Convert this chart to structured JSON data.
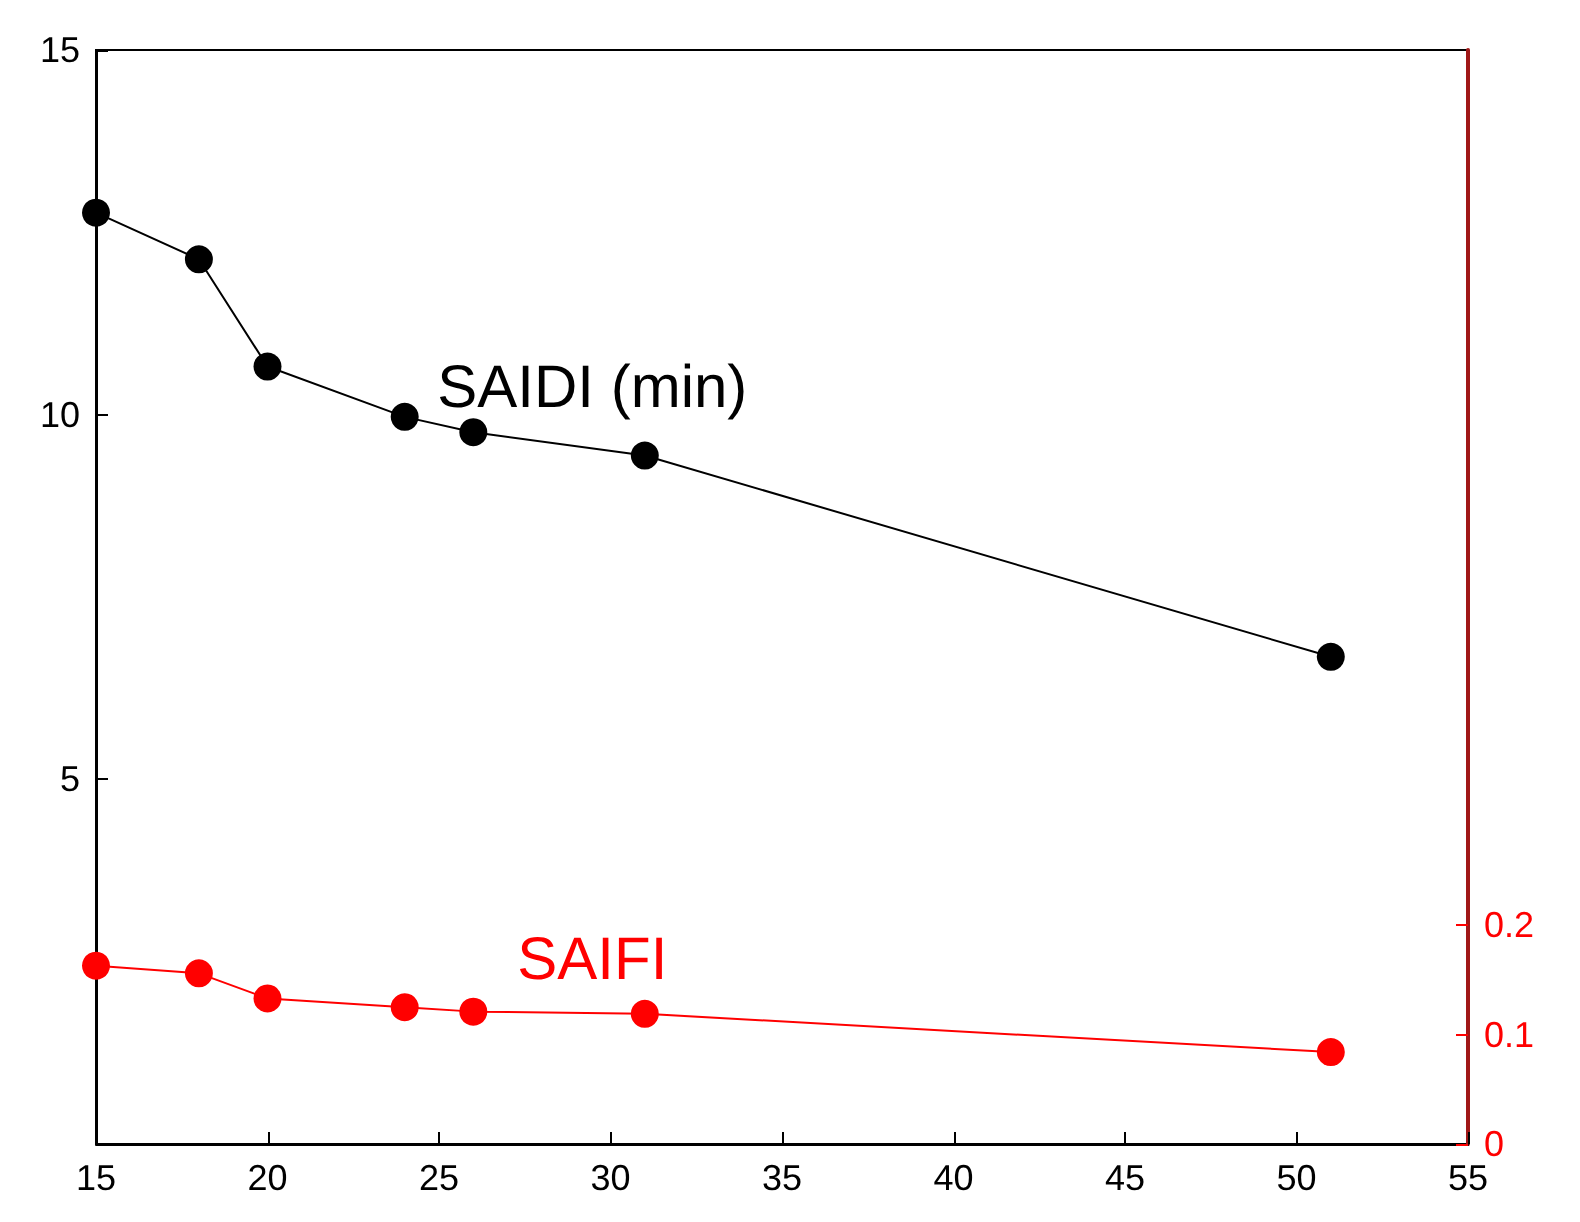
{
  "chart_data": {
    "type": "line",
    "x": [
      15,
      18,
      20,
      24,
      26,
      31,
      51
    ],
    "series": [
      {
        "name": "SAIDI (min)",
        "color": "#000000",
        "values": [
          12.77,
          12.13,
          10.66,
          9.97,
          9.76,
          9.44,
          6.68
        ]
      },
      {
        "name": "SAIFI",
        "color": "#ff0000",
        "axis": "y2",
        "values": [
          0.163,
          0.156,
          0.133,
          0.125,
          0.121,
          0.119,
          0.084
        ]
      }
    ],
    "xlim": [
      15,
      55
    ],
    "xticks": [
      15,
      20,
      25,
      30,
      35,
      40,
      45,
      50,
      55
    ],
    "ylim": [
      0,
      15
    ],
    "yticks": [
      5,
      10,
      15
    ],
    "y2lim": [
      0,
      1
    ],
    "y2ticks": [
      0,
      0.1,
      0.2
    ],
    "marker": "circle",
    "grid": false,
    "legend": false
  }
}
